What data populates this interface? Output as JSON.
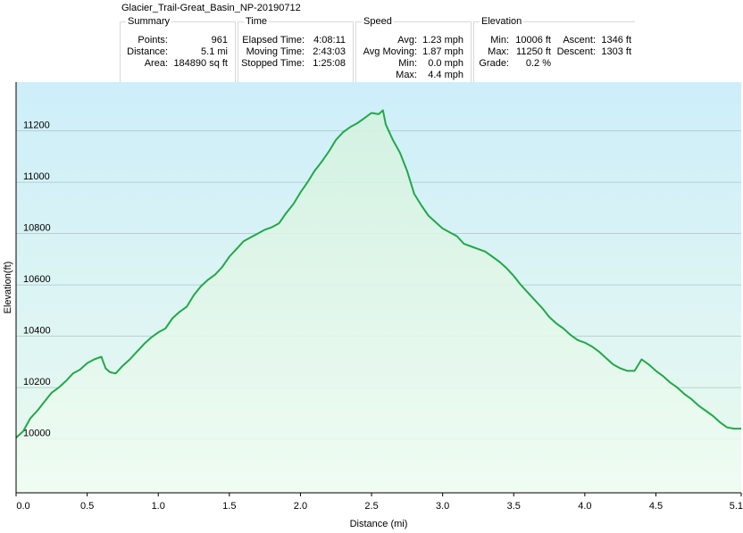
{
  "window": {
    "title": "Glacier_Trail-Great_Basin_NP-20190712"
  },
  "stats": {
    "summary": {
      "title": "Summary",
      "rows": [
        {
          "label": "Points:",
          "value": "961"
        },
        {
          "label": "Distance:",
          "value": "5.1 mi"
        },
        {
          "label": "Area:",
          "value": "184890 sq ft"
        }
      ]
    },
    "time": {
      "title": "Time",
      "rows": [
        {
          "label": "Elapsed Time:",
          "value": "4:08:11"
        },
        {
          "label": "Moving Time:",
          "value": "2:43:03"
        },
        {
          "label": "Stopped Time:",
          "value": "1:25:08"
        }
      ]
    },
    "speed": {
      "title": "Speed",
      "rows": [
        {
          "label": "Avg:",
          "value": "1.23 mph"
        },
        {
          "label": "Avg Moving:",
          "value": "1.87 mph"
        },
        {
          "label": "Min:",
          "value": "0.0 mph"
        },
        {
          "label": "Max:",
          "value": "4.4 mph"
        }
      ]
    },
    "elevation": {
      "title": "Elevation",
      "rows": [
        {
          "label": "Min:",
          "value": "10006 ft"
        },
        {
          "label": "Max:",
          "value": "11250 ft"
        },
        {
          "label": "Grade:",
          "value": "0.2 %"
        }
      ],
      "rows_right": [
        {
          "label": "Ascent:",
          "value": "1346 ft"
        },
        {
          "label": "Descent:",
          "value": "1303 ft"
        }
      ]
    }
  },
  "chart_data": {
    "type": "area",
    "xlabel": "Distance  (mi)",
    "ylabel": "Elevation(ft)",
    "xlim": [
      0,
      5.1
    ],
    "ylim": [
      9790,
      11390
    ],
    "x_ticks": [
      "0.0",
      "0.5",
      "1.0",
      "1.5",
      "2.0",
      "2.5",
      "3.0",
      "3.5",
      "4.0",
      "4.5",
      "5.1"
    ],
    "x_tick_values": [
      0,
      0.5,
      1.0,
      1.5,
      2.0,
      2.5,
      3.0,
      3.5,
      4.0,
      4.5,
      5.1
    ],
    "y_ticks": [
      "10000",
      "10200",
      "10400",
      "10600",
      "10800",
      "11000",
      "11200"
    ],
    "y_tick_values": [
      10000,
      10200,
      10400,
      10600,
      10800,
      11000,
      11200
    ],
    "grid": true,
    "line_color": "#22a84a",
    "background_top": "#cdeefa",
    "background_bottom": "#eafaee",
    "series": [
      {
        "x": [
          0.0,
          0.05,
          0.1,
          0.15,
          0.2,
          0.25,
          0.3,
          0.35,
          0.4,
          0.45,
          0.5,
          0.55,
          0.6,
          0.63,
          0.66,
          0.7,
          0.75,
          0.8,
          0.85,
          0.9,
          0.95,
          1.0,
          1.05,
          1.1,
          1.15,
          1.2,
          1.25,
          1.3,
          1.35,
          1.4,
          1.45,
          1.5,
          1.55,
          1.6,
          1.65,
          1.7,
          1.75,
          1.8,
          1.85,
          1.9,
          1.95,
          2.0,
          2.05,
          2.1,
          2.15,
          2.2,
          2.25,
          2.3,
          2.35,
          2.4,
          2.45,
          2.5,
          2.55,
          2.58,
          2.6,
          2.65,
          2.7,
          2.75,
          2.8,
          2.85,
          2.9,
          2.95,
          3.0,
          3.05,
          3.1,
          3.15,
          3.2,
          3.25,
          3.3,
          3.35,
          3.4,
          3.45,
          3.5,
          3.55,
          3.6,
          3.65,
          3.7,
          3.75,
          3.8,
          3.85,
          3.9,
          3.95,
          4.0,
          4.05,
          4.1,
          4.15,
          4.2,
          4.25,
          4.3,
          4.35,
          4.4,
          4.45,
          4.5,
          4.55,
          4.6,
          4.65,
          4.7,
          4.75,
          4.8,
          4.85,
          4.9,
          4.95,
          5.0,
          5.05,
          5.1
        ],
        "y": [
          10005,
          10030,
          10080,
          10110,
          10145,
          10180,
          10200,
          10225,
          10255,
          10270,
          10295,
          10310,
          10320,
          10275,
          10260,
          10255,
          10285,
          10310,
          10340,
          10370,
          10395,
          10415,
          10430,
          10470,
          10495,
          10515,
          10560,
          10595,
          10620,
          10640,
          10670,
          10710,
          10740,
          10770,
          10785,
          10800,
          10815,
          10825,
          10840,
          10880,
          10915,
          10960,
          11000,
          11045,
          11080,
          11120,
          11165,
          11195,
          11215,
          11230,
          11250,
          11270,
          11265,
          11280,
          11225,
          11165,
          11115,
          11045,
          10955,
          10910,
          10870,
          10845,
          10820,
          10805,
          10790,
          10760,
          10750,
          10740,
          10730,
          10710,
          10690,
          10665,
          10635,
          10600,
          10570,
          10540,
          10510,
          10475,
          10450,
          10430,
          10405,
          10385,
          10375,
          10360,
          10340,
          10315,
          10290,
          10275,
          10265,
          10265,
          10310,
          10290,
          10265,
          10245,
          10220,
          10200,
          10175,
          10155,
          10130,
          10110,
          10090,
          10065,
          10045,
          10040,
          10040
        ]
      }
    ]
  }
}
